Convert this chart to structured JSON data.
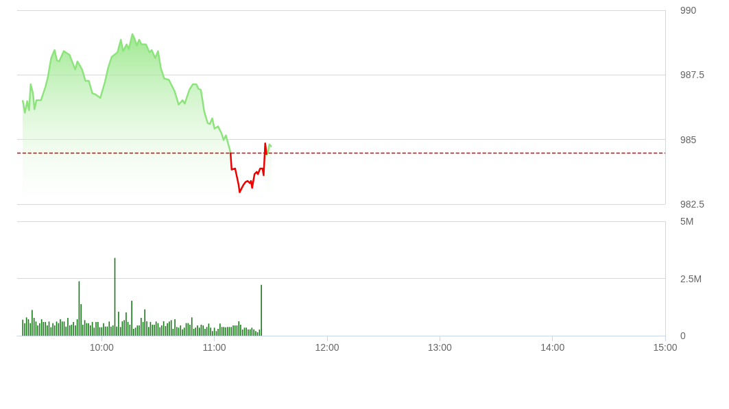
{
  "chart_data": [
    {
      "type": "area",
      "x": [
        9.299,
        9.319,
        9.339,
        9.356,
        9.37,
        9.39,
        9.404,
        9.421,
        9.461,
        9.502,
        9.522,
        9.552,
        9.582,
        9.603,
        9.623,
        9.664,
        9.694,
        9.714,
        9.765,
        9.785,
        9.826,
        9.856,
        9.886,
        9.917,
        9.947,
        9.988,
        10.029,
        10.059,
        10.089,
        10.14,
        10.17,
        10.19,
        10.221,
        10.241,
        10.272,
        10.292,
        10.312,
        10.333,
        10.353,
        10.393,
        10.424,
        10.444,
        10.474,
        10.5,
        10.525,
        10.555,
        10.596,
        10.646,
        10.683,
        10.717,
        10.737,
        10.778,
        10.809,
        10.839,
        10.859,
        10.88,
        10.91,
        10.94,
        10.96,
        10.981,
        11.001,
        11.032,
        11.062,
        11.082,
        11.102,
        11.133,
        11.143,
        11.153,
        11.184,
        11.214,
        11.224,
        11.254,
        11.275,
        11.295,
        11.315,
        11.325,
        11.335,
        11.356,
        11.376,
        11.386,
        11.406,
        11.427,
        11.437,
        11.451,
        11.463,
        11.477,
        11.488,
        11.508
      ],
      "series": [
        {
          "color": "#8de47c",
          "values": [
            986.52,
            986.04,
            986.48,
            986.13,
            987.14,
            986.79,
            986.17,
            986.52,
            986.52,
            987.05,
            987.4,
            988.15,
            988.46,
            988.06,
            988.02,
            988.42,
            988.33,
            988.28,
            987.71,
            988.02,
            987.71,
            987.27,
            987.27,
            986.79,
            986.74,
            986.61,
            987.23,
            987.8,
            988.2,
            988.37,
            988.86,
            988.42,
            988.68,
            988.5,
            989.08,
            988.9,
            988.63,
            988.86,
            988.68,
            988.68,
            988.37,
            988.46,
            988.15,
            988.42,
            987.76,
            987.36,
            987.31,
            986.88,
            986.35,
            986.52,
            986.39,
            986.92,
            987.14,
            987.14,
            986.96,
            986.92,
            986.08,
            985.64,
            985.6,
            985.82,
            985.42,
            985.51,
            985.25,
            984.98,
            985.16,
            984.67,
            984.5,
            null,
            null,
            null,
            null,
            null,
            null,
            null,
            null,
            null,
            null,
            null,
            null,
            null,
            null,
            null,
            null,
            984.85,
            984.41,
            984.54,
            984.81,
            984.72
          ]
        },
        {
          "type": "line",
          "color": "#ee0000",
          "values": [
            null,
            null,
            null,
            null,
            null,
            null,
            null,
            null,
            null,
            null,
            null,
            null,
            null,
            null,
            null,
            null,
            null,
            null,
            null,
            null,
            null,
            null,
            null,
            null,
            null,
            null,
            null,
            null,
            null,
            null,
            null,
            null,
            null,
            null,
            null,
            null,
            null,
            null,
            null,
            null,
            null,
            null,
            null,
            null,
            null,
            null,
            null,
            null,
            null,
            null,
            null,
            null,
            null,
            null,
            null,
            null,
            null,
            null,
            null,
            null,
            null,
            null,
            null,
            null,
            null,
            null,
            984.5,
            983.84,
            983.88,
            983.27,
            982.96,
            983.22,
            983.35,
            983.4,
            983.31,
            983.4,
            983.13,
            983.66,
            983.75,
            983.66,
            983.88,
            983.88,
            983.62,
            984.85,
            984.41,
            null,
            null,
            null
          ]
        }
      ],
      "xlim": [
        9.25,
        15
      ],
      "ylim": [
        982.5,
        990
      ],
      "yticks": [
        982.5,
        985,
        987.5,
        990
      ],
      "ref_lines": [
        {
          "axis": "y",
          "value": 984.47,
          "color": "#e00000",
          "line_style": "dashed"
        }
      ],
      "grid": "y",
      "tick_labels": "y",
      "marker": "none"
    },
    {
      "type": "bar",
      "color": "#157a15",
      "x": [
        9.3,
        9.317,
        9.333,
        9.35,
        9.367,
        9.383,
        9.4,
        9.417,
        9.433,
        9.45,
        9.467,
        9.483,
        9.5,
        9.517,
        9.533,
        9.55,
        9.567,
        9.583,
        9.6,
        9.617,
        9.633,
        9.65,
        9.667,
        9.683,
        9.7,
        9.717,
        9.733,
        9.75,
        9.767,
        9.783,
        9.8,
        9.817,
        9.833,
        9.85,
        9.867,
        9.883,
        9.9,
        9.917,
        9.933,
        9.95,
        9.967,
        9.983,
        10,
        10.017,
        10.033,
        10.05,
        10.067,
        10.083,
        10.1,
        10.117,
        10.133,
        10.15,
        10.167,
        10.183,
        10.2,
        10.217,
        10.233,
        10.25,
        10.267,
        10.283,
        10.3,
        10.317,
        10.333,
        10.35,
        10.367,
        10.383,
        10.4,
        10.417,
        10.433,
        10.45,
        10.467,
        10.483,
        10.5,
        10.517,
        10.533,
        10.55,
        10.567,
        10.583,
        10.6,
        10.617,
        10.633,
        10.65,
        10.667,
        10.683,
        10.7,
        10.717,
        10.733,
        10.75,
        10.767,
        10.783,
        10.8,
        10.817,
        10.833,
        10.85,
        10.867,
        10.883,
        10.9,
        10.917,
        10.933,
        10.95,
        10.967,
        10.983,
        11,
        11.017,
        11.033,
        11.05,
        11.067,
        11.083,
        11.1,
        11.117,
        11.133,
        11.15,
        11.167,
        11.183,
        11.2,
        11.217,
        11.233,
        11.25,
        11.267,
        11.283,
        11.3,
        11.317,
        11.333,
        11.35,
        11.367,
        11.383,
        11.4,
        11.417
      ],
      "values": [
        0.7,
        0.55,
        0.8,
        0.72,
        0.55,
        1.12,
        0.78,
        0.62,
        0.45,
        0.55,
        0.72,
        0.6,
        0.6,
        0.45,
        0.62,
        0.37,
        0.55,
        0.45,
        0.62,
        0.55,
        0.72,
        0.62,
        0.62,
        0.4,
        0.78,
        0.45,
        0.48,
        0.6,
        0.45,
        0.72,
        2.38,
        1.38,
        0.48,
        0.68,
        0.55,
        0.55,
        0.45,
        0.6,
        0.35,
        0.6,
        0.6,
        0.37,
        0.37,
        0.55,
        0.4,
        0.4,
        0.62,
        0.4,
        0.45,
        3.4,
        0.4,
        1.05,
        0.38,
        0.63,
        0.68,
        1.02,
        0.6,
        0.48,
        1.53,
        0.3,
        0.35,
        0.45,
        0.45,
        0.78,
        0.6,
        1.15,
        0.63,
        0.38,
        0.6,
        0.48,
        0.48,
        0.62,
        0.55,
        0.37,
        0.45,
        0.63,
        0.42,
        0.55,
        0.62,
        0.68,
        0.3,
        0.72,
        0.38,
        0.35,
        0.45,
        0.28,
        0.35,
        0.55,
        0.55,
        0.48,
        0.8,
        0.3,
        0.35,
        0.45,
        0.35,
        0.48,
        0.45,
        0.3,
        0.38,
        0.53,
        0.35,
        0.2,
        0.35,
        0.2,
        0.3,
        0.53,
        0.38,
        0.38,
        0.37,
        0.38,
        0.38,
        0.38,
        0.45,
        0.45,
        0.45,
        0.63,
        0.48,
        0.27,
        0.35,
        0.35,
        0.28,
        0.28,
        0.35,
        0.28,
        0.2,
        0.15,
        0.27,
        2.22
      ],
      "xlim": [
        9.25,
        15
      ],
      "xticks": [
        {
          "value": 10,
          "label": "10:00"
        },
        {
          "value": 11,
          "label": "11:00"
        },
        {
          "value": 12,
          "label": "12:00"
        },
        {
          "value": 13,
          "label": "13:00"
        },
        {
          "value": 14,
          "label": "14:00"
        },
        {
          "value": 15,
          "label": "15:00"
        }
      ],
      "ylim": [
        0,
        5
      ],
      "yticks": [
        0,
        {
          "value": 2.5,
          "label": "2.5M"
        },
        {
          "value": 5,
          "label": "5M"
        }
      ],
      "grid": "y"
    }
  ]
}
